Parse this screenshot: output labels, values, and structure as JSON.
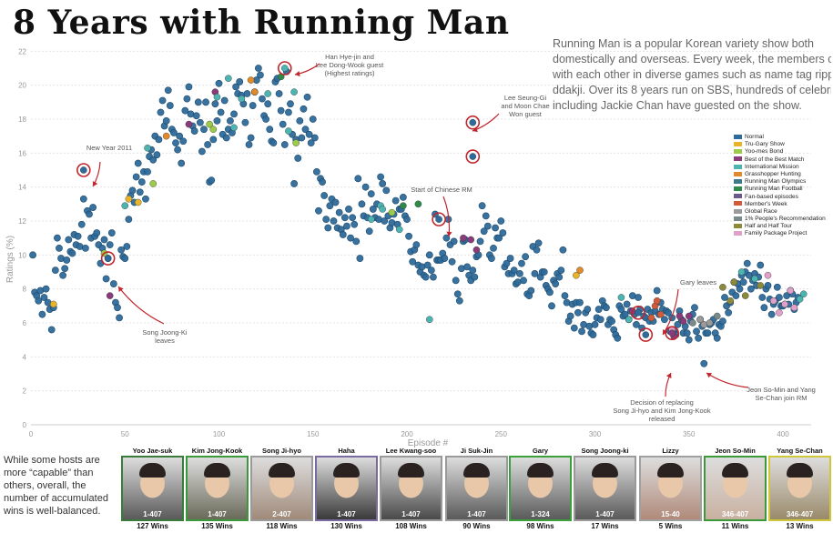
{
  "title": "8 Years with Running Man",
  "description_lines": [
    "Running Man is a popular Korean variety show both",
    "domestically and overseas. Every week, the members compet",
    "with each other in diverse games such as name tag ripping or",
    "ddakji. Over its 8 years run on SBS, hundreds of celebrities",
    "including Jackie Chan have guested on the show."
  ],
  "hosts_note": "While some hosts are more “capable” than others, overall, the number of accumulated wins is well-balanced.",
  "chart_data": {
    "type": "scatter",
    "xlabel": "Episode #",
    "ylabel": "Ratings (%)",
    "xlim": [
      0,
      415
    ],
    "ylim": [
      0,
      22.5
    ],
    "x_ticks": [
      0,
      50,
      100,
      150,
      200,
      250,
      300,
      350,
      400
    ],
    "y_ticks": [
      0,
      2,
      4,
      6,
      8,
      10,
      12,
      14,
      16,
      18,
      20,
      22
    ],
    "grid": "horizontal-dotted",
    "legend_position": "right",
    "categories": [
      {
        "name": "Normal",
        "color": "#2e6a9a"
      },
      {
        "name": "Tru-Gary Show",
        "color": "#e8b52a"
      },
      {
        "name": "Yoo-mes Bond",
        "color": "#9ccb4a"
      },
      {
        "name": "Best of the Best Match",
        "color": "#8a3c7a"
      },
      {
        "name": "International Mission",
        "color": "#4cb5b2"
      },
      {
        "name": "Grasshopper Hunting",
        "color": "#e08a2a"
      },
      {
        "name": "Running Man Olympics",
        "color": "#3c7a8a"
      },
      {
        "name": "Running Man Football",
        "color": "#2e8a4a"
      },
      {
        "name": "Fan-based episodes",
        "color": "#6a5a8a"
      },
      {
        "name": "Member's Week",
        "color": "#d45a3a"
      },
      {
        "name": "Global Race",
        "color": "#9a9a9a"
      },
      {
        "name": "1% People's Recommendation",
        "color": "#7a8a8a"
      },
      {
        "name": "Half and Half Tour",
        "color": "#8a8a3a"
      },
      {
        "name": "Family Package Project",
        "color": "#e0a0c8"
      }
    ],
    "annotations": [
      {
        "lines": [
          "New Year 2011"
        ],
        "x": 28,
        "y": 15.0
      },
      {
        "lines": [
          "Song Joong-Ki",
          "leaves"
        ],
        "x": 41,
        "y": 9.8
      },
      {
        "lines": [
          "Han Hye-jin and",
          "Lee Dong-Wook guest",
          "(Highest ratings)"
        ],
        "x": 135,
        "y": 21.0
      },
      {
        "lines": [
          "Lee Seung-Gi",
          "and Moon Chae",
          "Won guest"
        ],
        "x": 235,
        "y": 17.8
      },
      {
        "lines": [
          "Start of Chinese RM"
        ],
        "x": 217,
        "y": 12.1
      },
      {
        "lines": [
          "Gary leaves"
        ],
        "x": 323,
        "y": 6.6
      },
      {
        "lines": [
          "Decision of replacing",
          "Song Ji-hyo and Kim Jong-Kook",
          "released"
        ],
        "x": 327,
        "y": 5.3
      },
      {
        "lines": [
          "Jeon So-Min and Yang",
          "Se-Chan join RM"
        ],
        "x": 341,
        "y": 5.4
      }
    ],
    "highlighted": [
      {
        "x": 28,
        "y": 15.0
      },
      {
        "x": 41,
        "y": 9.8
      },
      {
        "x": 135,
        "y": 21.0
      },
      {
        "x": 235,
        "y": 17.8
      },
      {
        "x": 235,
        "y": 15.8
      },
      {
        "x": 217,
        "y": 12.1
      },
      {
        "x": 323,
        "y": 6.6
      },
      {
        "x": 327,
        "y": 5.3
      },
      {
        "x": 341,
        "y": 5.4
      }
    ],
    "series_normal_y": [
      10.0,
      7.8,
      7.6,
      7.3,
      7.9,
      6.5,
      7.5,
      8.0,
      7.2,
      6.8,
      5.6,
      6.9,
      9.1,
      11.0,
      10.4,
      9.8,
      8.8,
      9.2,
      9.7,
      10.9,
      10.2,
      10.1,
      11.2,
      10.6,
      11.1,
      10.5,
      11.8,
      13.3,
      10.4,
      12.6,
      12.4,
      11.0,
      12.8,
      11.1,
      11.3,
      10.6,
      9.5,
      10.4,
      10.9,
      8.6,
      9.8,
      10.6,
      11.3,
      8.3,
      7.2,
      6.9,
      6.3,
      10.3,
      9.9,
      9.8,
      10.5,
      12.1,
      13.5,
      13.8,
      13.1,
      14.6,
      15.4,
      13.7,
      14.3,
      14.9,
      13.3,
      14.9,
      15.8,
      16.2,
      15.6,
      17.0,
      15.9,
      16.8,
      18.4,
      19.1,
      17.6,
      17.9,
      19.7,
      18.8,
      17.4,
      17.2,
      16.6,
      16.2,
      17.0,
      15.4,
      16.7,
      18.5,
      19.2,
      19.9,
      18.3,
      17.6,
      17.3,
      18.2,
      19.0,
      17.8,
      16.1,
      17.4,
      19.0,
      16.5,
      14.3,
      14.4,
      16.8,
      18.9,
      17.9,
      20.1,
      18.4,
      17.1,
      19.1,
      16.9,
      17.4,
      17.9,
      17.2,
      18.3,
      19.9,
      19.5,
      20.2,
      19.4,
      18.9,
      17.8,
      19.5,
      16.5,
      16.9,
      18.8,
      19.6,
      20.3,
      21.0,
      20.6,
      19.2,
      18.2,
      18.0,
      18.9,
      17.4,
      16.7,
      16.6,
      20.2,
      20.4,
      19.5,
      18.5,
      17.7,
      16.5,
      20.8,
      18.4,
      18.9,
      17.1,
      14.2,
      16.8,
      15.7,
      17.9,
      16.9,
      18.6,
      17.4,
      19.3,
      17.1,
      16.6,
      18.0,
      16.9,
      14.9,
      12.6,
      14.5,
      14.3,
      13.5,
      12.1,
      11.6,
      12.9,
      13.3,
      12.0,
      13.1,
      11.6,
      12.5,
      11.5,
      11.2,
      12.2,
      11.7,
      12.7,
      11.0,
      12.2,
      11.8,
      10.8,
      14.5,
      9.8,
      13.0,
      12.3,
      14.0,
      12.2,
      11.4,
      13.6,
      12.7,
      12.2,
      13.0,
      12.1,
      14.6,
      14.2,
      12.0,
      13.8,
      12.3,
      11.6,
      11.9,
      12.4,
      13.2,
      11.8,
      12.7,
      12.7,
      13.4,
      12.3,
      12.1,
      11.1,
      10.2,
      9.6,
      10.3,
      10.6,
      9.4,
      9.0,
      9.3,
      8.8,
      8.7,
      9.4,
      10.0,
      9.1,
      8.7,
      12.4,
      9.7,
      9.7,
      9.7,
      10.1,
      9.8,
      11.0,
      12.1,
      10.6,
      9.6,
      10.8,
      8.5,
      7.7,
      7.3,
      9.2,
      10.8,
      10.9,
      9.3,
      8.8,
      8.5,
      9.1,
      8.7,
      9.9,
      10.0,
      10.8,
      12.9,
      11.4,
      12.3,
      11.7,
      10.0,
      9.8,
      10.4,
      11.6,
      11.0,
      11.0,
      12.0,
      11.3,
      9.3,
      9.5,
      8.9,
      9.8,
      8.9,
      9.1,
      8.3,
      8.4,
      8.9,
      9.5,
      8.5,
      9.9,
      7.7,
      7.6,
      7.9,
      10.5,
      8.9,
      10.3,
      10.7,
      8.7,
      9.0,
      9.0,
      8.2,
      8.0,
      7.8,
      7.0,
      8.5,
      8.3,
      8.9,
      8.7,
      9.1,
      10.3,
      7.6,
      7.2,
      6.1,
      6.4,
      7.1,
      5.7,
      7.2,
      6.6,
      7.2,
      5.5,
      5.9,
      6.6,
      6.8,
      5.8,
      5.4,
      5.3,
      5.9,
      6.3,
      6.8,
      6.2,
      7.3,
      7.0,
      6.9,
      5.9,
      6.2,
      6.1,
      5.6,
      5.3,
      5.1,
      7.0,
      6.8,
      6.4,
      6.5,
      7.1,
      6.2,
      6.7,
      7.6,
      6.5,
      5.9,
      7.5,
      6.8,
      5.7,
      6.4,
      6.3,
      6.8,
      6.1,
      6.6,
      6.1,
      6.7,
      7.9,
      6.5,
      7.2,
      6.8,
      6.2,
      6.7,
      6.6,
      5.5,
      6.3,
      5.5,
      5.3,
      5.9,
      6.7,
      6.2,
      5.4,
      5.8,
      5.4,
      5.0,
      6.1,
      6.5,
      6.9,
      5.5,
      5.1,
      6.2,
      5.8,
      3.6,
      5.4,
      5.4,
      5.9,
      6.0,
      6.2,
      5.4,
      5.1,
      5.9,
      5.8,
      6.1,
      7.5,
      7.0,
      6.6,
      7.2,
      7.8,
      8.4,
      7.6,
      8.3,
      8.0,
      8.8,
      8.4,
      9.0,
      9.5,
      8.8,
      8.0,
      8.5,
      8.9,
      8.2,
      8.7,
      9.4,
      7.5,
      6.9,
      8.0,
      8.2,
      7.4,
      6.5,
      7.1,
      7.3,
      8.1,
      7.5,
      7.0,
      7.0,
      7.1,
      7.6,
      7.1,
      7.9,
      7.7,
      6.8,
      7.2,
      7.5
    ],
    "special_points": [
      {
        "x": 12,
        "y": 7.1,
        "cat": 1
      },
      {
        "x": 39,
        "y": 10.1,
        "cat": 2
      },
      {
        "x": 42,
        "y": 7.6,
        "cat": 3
      },
      {
        "x": 50,
        "y": 12.9,
        "cat": 4
      },
      {
        "x": 52,
        "y": 13.3,
        "cat": 1
      },
      {
        "x": 57,
        "y": 13.1,
        "cat": 1
      },
      {
        "x": 62,
        "y": 16.3,
        "cat": 4
      },
      {
        "x": 65,
        "y": 14.2,
        "cat": 2
      },
      {
        "x": 72,
        "y": 17.0,
        "cat": 5
      },
      {
        "x": 84,
        "y": 17.7,
        "cat": 3
      },
      {
        "x": 95,
        "y": 17.7,
        "cat": 2
      },
      {
        "x": 97,
        "y": 17.4,
        "cat": 2
      },
      {
        "x": 98,
        "y": 19.6,
        "cat": 3
      },
      {
        "x": 99,
        "y": 19.3,
        "cat": 4
      },
      {
        "x": 105,
        "y": 20.4,
        "cat": 4
      },
      {
        "x": 108,
        "y": 17.5,
        "cat": 4
      },
      {
        "x": 112,
        "y": 19.2,
        "cat": 4
      },
      {
        "x": 117,
        "y": 20.3,
        "cat": 5
      },
      {
        "x": 119,
        "y": 19.6,
        "cat": 5
      },
      {
        "x": 126,
        "y": 19.5,
        "cat": 4
      },
      {
        "x": 133,
        "y": 20.5,
        "cat": 7
      },
      {
        "x": 137,
        "y": 17.3,
        "cat": 4
      },
      {
        "x": 140,
        "y": 19.6,
        "cat": 4
      },
      {
        "x": 141,
        "y": 16.6,
        "cat": 2
      },
      {
        "x": 181,
        "y": 12.1,
        "cat": 4
      },
      {
        "x": 186,
        "y": 12.9,
        "cat": 4
      },
      {
        "x": 187,
        "y": 12.7,
        "cat": 4
      },
      {
        "x": 192,
        "y": 12.5,
        "cat": 2
      },
      {
        "x": 198,
        "y": 12.9,
        "cat": 7
      },
      {
        "x": 212,
        "y": 6.2,
        "cat": 4
      },
      {
        "x": 230,
        "y": 11.0,
        "cat": 3
      },
      {
        "x": 234,
        "y": 10.9,
        "cat": 3
      },
      {
        "x": 237,
        "y": 10.3,
        "cat": 3
      },
      {
        "x": 290,
        "y": 8.8,
        "cat": 1
      },
      {
        "x": 292,
        "y": 9.1,
        "cat": 5
      },
      {
        "x": 314,
        "y": 7.5,
        "cat": 4
      },
      {
        "x": 318,
        "y": 6.2,
        "cat": 4
      },
      {
        "x": 320,
        "y": 6.7,
        "cat": 3
      },
      {
        "x": 330,
        "y": 6.3,
        "cat": 9
      },
      {
        "x": 332,
        "y": 7.0,
        "cat": 9
      },
      {
        "x": 333,
        "y": 7.3,
        "cat": 9
      },
      {
        "x": 335,
        "y": 6.5,
        "cat": 9
      },
      {
        "x": 341,
        "y": 5.6,
        "cat": 13
      },
      {
        "x": 342,
        "y": 5.2,
        "cat": 3
      },
      {
        "x": 345,
        "y": 6.4,
        "cat": 3
      },
      {
        "x": 347,
        "y": 6.1,
        "cat": 3
      },
      {
        "x": 350,
        "y": 6.4,
        "cat": 3
      },
      {
        "x": 352,
        "y": 6.0,
        "cat": 11
      },
      {
        "x": 356,
        "y": 6.2,
        "cat": 10
      },
      {
        "x": 358,
        "y": 5.9,
        "cat": 10
      },
      {
        "x": 361,
        "y": 6.0,
        "cat": 10
      },
      {
        "x": 365,
        "y": 6.4,
        "cat": 11
      },
      {
        "x": 368,
        "y": 8.1,
        "cat": 12
      },
      {
        "x": 372,
        "y": 7.3,
        "cat": 12
      },
      {
        "x": 374,
        "y": 8.4,
        "cat": 12
      },
      {
        "x": 378,
        "y": 9.0,
        "cat": 4
      },
      {
        "x": 380,
        "y": 7.6,
        "cat": 12
      },
      {
        "x": 385,
        "y": 8.6,
        "cat": 4
      },
      {
        "x": 388,
        "y": 8.2,
        "cat": 12
      },
      {
        "x": 392,
        "y": 8.8,
        "cat": 13
      },
      {
        "x": 395,
        "y": 7.3,
        "cat": 13
      },
      {
        "x": 398,
        "y": 6.6,
        "cat": 13
      },
      {
        "x": 401,
        "y": 7.1,
        "cat": 13
      },
      {
        "x": 404,
        "y": 7.9,
        "cat": 13
      },
      {
        "x": 406,
        "y": 6.9,
        "cat": 13
      },
      {
        "x": 409,
        "y": 7.4,
        "cat": 4
      },
      {
        "x": 411,
        "y": 7.7,
        "cat": 4
      },
      {
        "x": 206,
        "y": 13.0,
        "cat": 7
      },
      {
        "x": 196,
        "y": 11.5,
        "cat": 4
      },
      {
        "x": 28,
        "y": 15.0,
        "cat": 0
      },
      {
        "x": 41,
        "y": 9.8,
        "cat": 0
      },
      {
        "x": 135,
        "y": 21.0,
        "cat": 4
      },
      {
        "x": 235,
        "y": 17.8,
        "cat": 0
      },
      {
        "x": 235,
        "y": 15.8,
        "cat": 0
      },
      {
        "x": 217,
        "y": 12.1,
        "cat": 0
      },
      {
        "x": 323,
        "y": 6.6,
        "cat": 0
      },
      {
        "x": 327,
        "y": 5.3,
        "cat": 0
      },
      {
        "x": 341,
        "y": 5.4,
        "cat": 3
      }
    ]
  },
  "hosts": [
    {
      "name": "Yoo Jae-suk",
      "range": "1-407",
      "wins": "127 Wins",
      "border": "#3a7a3a",
      "bg": "#5a5a5a"
    },
    {
      "name": "Kim Jong-Kook",
      "range": "1-407",
      "wins": "135 Wins",
      "border": "#3a9a3a",
      "bg": "#6a6a5a"
    },
    {
      "name": "Song Ji-hyo",
      "range": "2-407",
      "wins": "118 Wins",
      "border": "#9a9a9a",
      "bg": "#a08a7a"
    },
    {
      "name": "Haha",
      "range": "1-407",
      "wins": "130 Wins",
      "border": "#7a6aa0",
      "bg": "#3a3a3a"
    },
    {
      "name": "Lee Kwang-soo",
      "range": "1-407",
      "wins": "108 Wins",
      "border": "#9a9a9a",
      "bg": "#4a4a4a"
    },
    {
      "name": "Ji Suk-Jin",
      "range": "1-407",
      "wins": "90 Wins",
      "border": "#9a9a9a",
      "bg": "#5a5a5a"
    },
    {
      "name": "Gary",
      "range": "1-324",
      "wins": "98 Wins",
      "border": "#3aa03a",
      "bg": "#5a5a5a"
    },
    {
      "name": "Song Joong-ki",
      "range": "1-407",
      "wins": "17 Wins",
      "border": "#9a9a9a",
      "bg": "#5a5a5a"
    },
    {
      "name": "Lizzy",
      "range": "15-40",
      "wins": "5 Wins",
      "border": "#a0a0a0",
      "bg": "#b08a7a"
    },
    {
      "name": "Jeon So-Min",
      "range": "346-407",
      "wins": "11 Wins",
      "border": "#3a9a3a",
      "bg": "#c8b0a0"
    },
    {
      "name": "Yang Se-Chan",
      "range": "346-407",
      "wins": "13 Wins",
      "border": "#d0c83a",
      "bg": "#9a8a6a"
    }
  ]
}
